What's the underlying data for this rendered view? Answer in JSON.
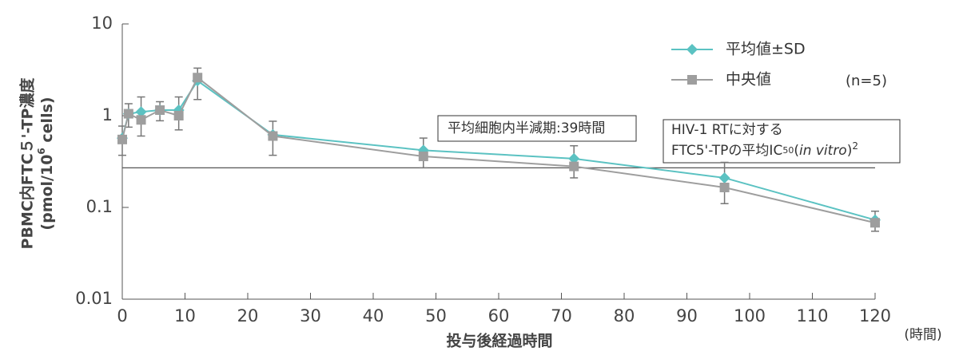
{
  "chart_data": {
    "type": "line",
    "x_label": "投与後経過時間",
    "x_unit": "(時間)",
    "y_label": [
      "PBMC内FTC５'-TP濃度",
      "(pmol/10",
      "6",
      " cells)"
    ],
    "x": [
      0,
      1,
      3,
      6,
      9,
      12,
      24,
      48,
      72,
      96,
      120
    ],
    "series": [
      {
        "name": "平均値±SD",
        "color": "#5bc2c2",
        "marker": "diamond",
        "values": [
          0.57,
          1.05,
          1.1,
          1.15,
          1.15,
          2.4,
          0.62,
          0.42,
          0.34,
          0.21,
          0.073
        ],
        "error": [
          0.2,
          0.3,
          0.5,
          0.27,
          0.45,
          0.9,
          0.25,
          0.15,
          0.13,
          0.1,
          0.018
        ]
      },
      {
        "name": "中央値",
        "color": "#9e9e9e",
        "marker": "square",
        "values": [
          0.55,
          1.05,
          0.9,
          1.15,
          1.0,
          2.6,
          0.6,
          0.36,
          0.28,
          0.165,
          0.068
        ]
      }
    ],
    "note": "(n=5)",
    "reference_line": 0.27,
    "annotations": [
      {
        "lines": [
          "平均細胞内半減期:39時間"
        ]
      },
      {
        "lines": [
          "HIV-1 RTに対する",
          "FTC5'-TPの平均IC",
          "50",
          "(",
          "in vitro",
          ")",
          "2"
        ]
      }
    ],
    "xlim": [
      0,
      120
    ],
    "xticks": [
      0,
      10,
      20,
      30,
      40,
      50,
      60,
      70,
      80,
      90,
      100,
      110,
      120
    ],
    "ylim": [
      0.01,
      10
    ],
    "yticks": [
      0.01,
      0.1,
      1,
      10
    ],
    "log_y": true,
    "grid": false
  }
}
